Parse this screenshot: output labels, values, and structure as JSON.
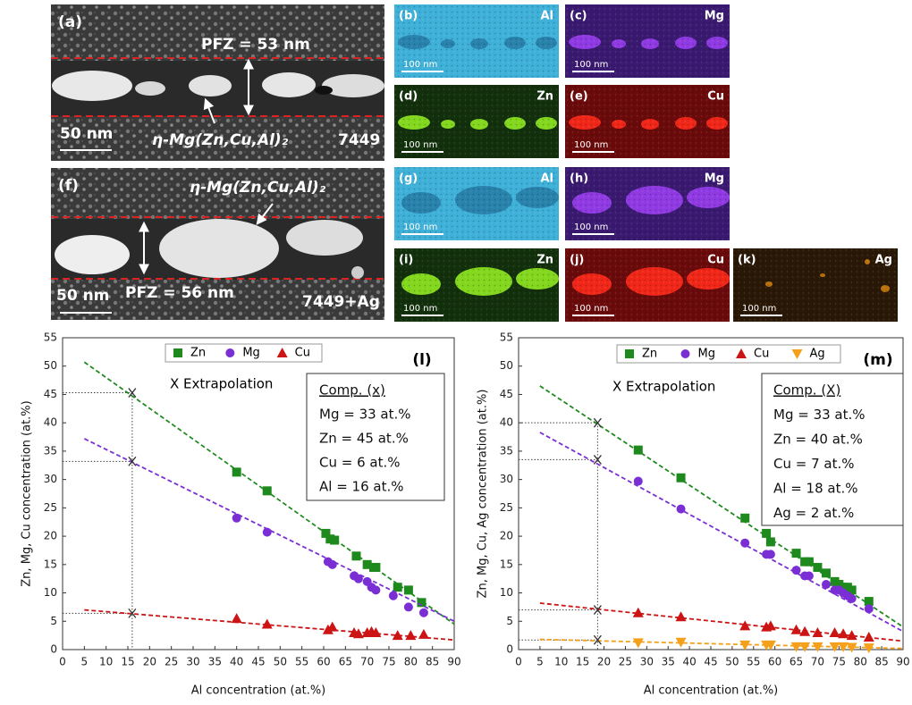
{
  "micrographs": [
    {
      "label": "(a)",
      "pfz": "PFZ = 53 nm",
      "phase": "η-Mg(Zn,Cu,Al)₂",
      "scale": "50 nm",
      "alloy": "7449"
    },
    {
      "label": "(f)",
      "pfz": "PFZ = 56 nm",
      "phase": "η-Mg(Zn,Cu,Al)₂",
      "scale": "50 nm",
      "alloy": "7449+Ag"
    }
  ],
  "maps": [
    {
      "label": "(b)",
      "element": "Al",
      "scale": "100 nm"
    },
    {
      "label": "(c)",
      "element": "Mg",
      "scale": "100 nm"
    },
    {
      "label": "(d)",
      "element": "Zn",
      "scale": "100 nm"
    },
    {
      "label": "(e)",
      "element": "Cu",
      "scale": "100 nm"
    },
    {
      "label": "(g)",
      "element": "Al",
      "scale": "100 nm"
    },
    {
      "label": "(h)",
      "element": "Mg",
      "scale": "100 nm"
    },
    {
      "label": "(i)",
      "element": "Zn",
      "scale": "100 nm"
    },
    {
      "label": "(j)",
      "element": "Cu",
      "scale": "100 nm"
    },
    {
      "label": "(k)",
      "element": "Ag",
      "scale": "100 nm"
    }
  ],
  "chart_data": [
    {
      "type": "scatter",
      "panel_label": "(l)",
      "x_label": "Al concentration (at.%)",
      "y_label": "Zn, Mg, Cu concentration (at.%)",
      "xlim": [
        0,
        90
      ],
      "ylim": [
        0,
        55
      ],
      "xticks": [
        0,
        5,
        10,
        15,
        20,
        25,
        30,
        35,
        40,
        45,
        50,
        55,
        60,
        65,
        70,
        75,
        80,
        85,
        90
      ],
      "yticks": [
        0,
        5,
        10,
        15,
        20,
        25,
        30,
        35,
        40,
        45,
        50,
        55
      ],
      "legend": "top",
      "series": [
        {
          "name": "Zn",
          "color": "#1e8a1e",
          "marker": "square",
          "x": [
            40,
            47,
            60.5,
            61.5,
            62.5,
            67.5,
            70,
            71.5,
            72,
            77,
            79.5,
            82.5
          ],
          "values": [
            31.3,
            28,
            20.5,
            19.5,
            19.3,
            16.5,
            15,
            14.5,
            14.5,
            11,
            10.5,
            8.3
          ],
          "fit": {
            "x": [
              5,
              90
            ],
            "y": [
              50.7,
              4.5
            ]
          }
        },
        {
          "name": "Mg",
          "color": "#7a2fd4",
          "marker": "circle",
          "x": [
            40,
            47,
            61,
            62,
            67,
            68,
            70,
            71,
            72,
            76,
            79.5,
            83
          ],
          "values": [
            23.2,
            20.7,
            15.5,
            15,
            13,
            12.5,
            12,
            11,
            10.5,
            9.5,
            7.5,
            6.5
          ],
          "fit": {
            "x": [
              5,
              90
            ],
            "y": [
              37.2,
              5
            ]
          }
        },
        {
          "name": "Cu",
          "color": "#cc1414",
          "marker": "triangle-up",
          "x": [
            40,
            47,
            61,
            62,
            67,
            68,
            70,
            71,
            72,
            77,
            80,
            83
          ],
          "values": [
            5.5,
            4.5,
            3.5,
            4,
            3,
            2.8,
            3,
            3.2,
            3,
            2.5,
            2.5,
            2.7
          ],
          "fit": {
            "x": [
              5,
              90
            ],
            "y": [
              7,
              1.7
            ]
          }
        }
      ],
      "extrapolation": {
        "label": "X Extrapolation",
        "x": 16,
        "values": [
          45.3,
          33.2,
          6.4
        ]
      },
      "composition": {
        "title": "Comp. (x)",
        "lines": [
          "Mg = 33 at.%",
          "Zn = 45 at.%",
          "Cu = 6 at.%",
          "Al = 16 at.%"
        ]
      }
    },
    {
      "type": "scatter",
      "panel_label": "(m)",
      "x_label": "Al concentration (at.%)",
      "y_label": "Zn, Mg, Cu, Ag concentration (at.%)",
      "xlim": [
        0,
        90
      ],
      "ylim": [
        0,
        55
      ],
      "xticks": [
        0,
        5,
        10,
        15,
        20,
        25,
        30,
        35,
        40,
        45,
        50,
        55,
        60,
        65,
        70,
        75,
        80,
        85,
        90
      ],
      "yticks": [
        0,
        5,
        10,
        15,
        20,
        25,
        30,
        35,
        40,
        45,
        50,
        55
      ],
      "legend": "top",
      "series": [
        {
          "name": "Zn",
          "color": "#1e8a1e",
          "marker": "square",
          "x": [
            28,
            38,
            53,
            58,
            59,
            65,
            67,
            68,
            70,
            72,
            74,
            75,
            76,
            77,
            78,
            82
          ],
          "values": [
            35.2,
            30.3,
            23.2,
            20.5,
            19,
            17,
            15.5,
            15.5,
            14.5,
            13.5,
            12,
            11.5,
            11,
            11,
            10.5,
            8.5
          ],
          "fit": {
            "x": [
              5,
              90
            ],
            "y": [
              46.5,
              4
            ]
          }
        },
        {
          "name": "Mg",
          "color": "#7a2fd4",
          "marker": "circle",
          "x": [
            28,
            38,
            53,
            58,
            59,
            65,
            67,
            68,
            72,
            74,
            75,
            76,
            77,
            78,
            82
          ],
          "values": [
            29.7,
            24.8,
            18.8,
            16.8,
            16.8,
            14,
            13,
            13,
            11.5,
            10.5,
            10.5,
            10,
            9.5,
            9,
            7.2
          ],
          "fit": {
            "x": [
              5,
              90
            ],
            "y": [
              38.3,
              3.2
            ]
          }
        },
        {
          "name": "Cu",
          "color": "#cc1414",
          "marker": "triangle-up",
          "x": [
            28,
            38,
            53,
            58,
            59,
            65,
            67,
            70,
            74,
            76,
            78,
            82
          ],
          "values": [
            6.5,
            5.8,
            4.2,
            4,
            4.2,
            3.5,
            3.2,
            3,
            3,
            2.8,
            2.5,
            2.2
          ],
          "fit": {
            "x": [
              5,
              90
            ],
            "y": [
              8.2,
              1.5
            ]
          }
        },
        {
          "name": "Ag",
          "color": "#f5a01a",
          "marker": "triangle-down",
          "x": [
            28,
            38,
            53,
            58,
            59,
            65,
            67,
            70,
            74,
            76,
            78,
            82
          ],
          "values": [
            1.2,
            1.3,
            0.8,
            0.8,
            0.8,
            0.5,
            0.5,
            0.5,
            0.5,
            0.5,
            0.4,
            0.3
          ],
          "fit": {
            "x": [
              5,
              90
            ],
            "y": [
              1.8,
              0.2
            ]
          }
        }
      ],
      "extrapolation": {
        "label": "X Extrapolation",
        "x": 18.5,
        "values": [
          40,
          33.5,
          7,
          1.7
        ]
      },
      "composition": {
        "title": "Comp. (X)",
        "lines": [
          "Mg = 33 at.%",
          "Zn = 40 at.%",
          "Cu = 7 at.%",
          "Al = 18 at.%",
          "Ag = 2 at.%"
        ]
      }
    }
  ]
}
